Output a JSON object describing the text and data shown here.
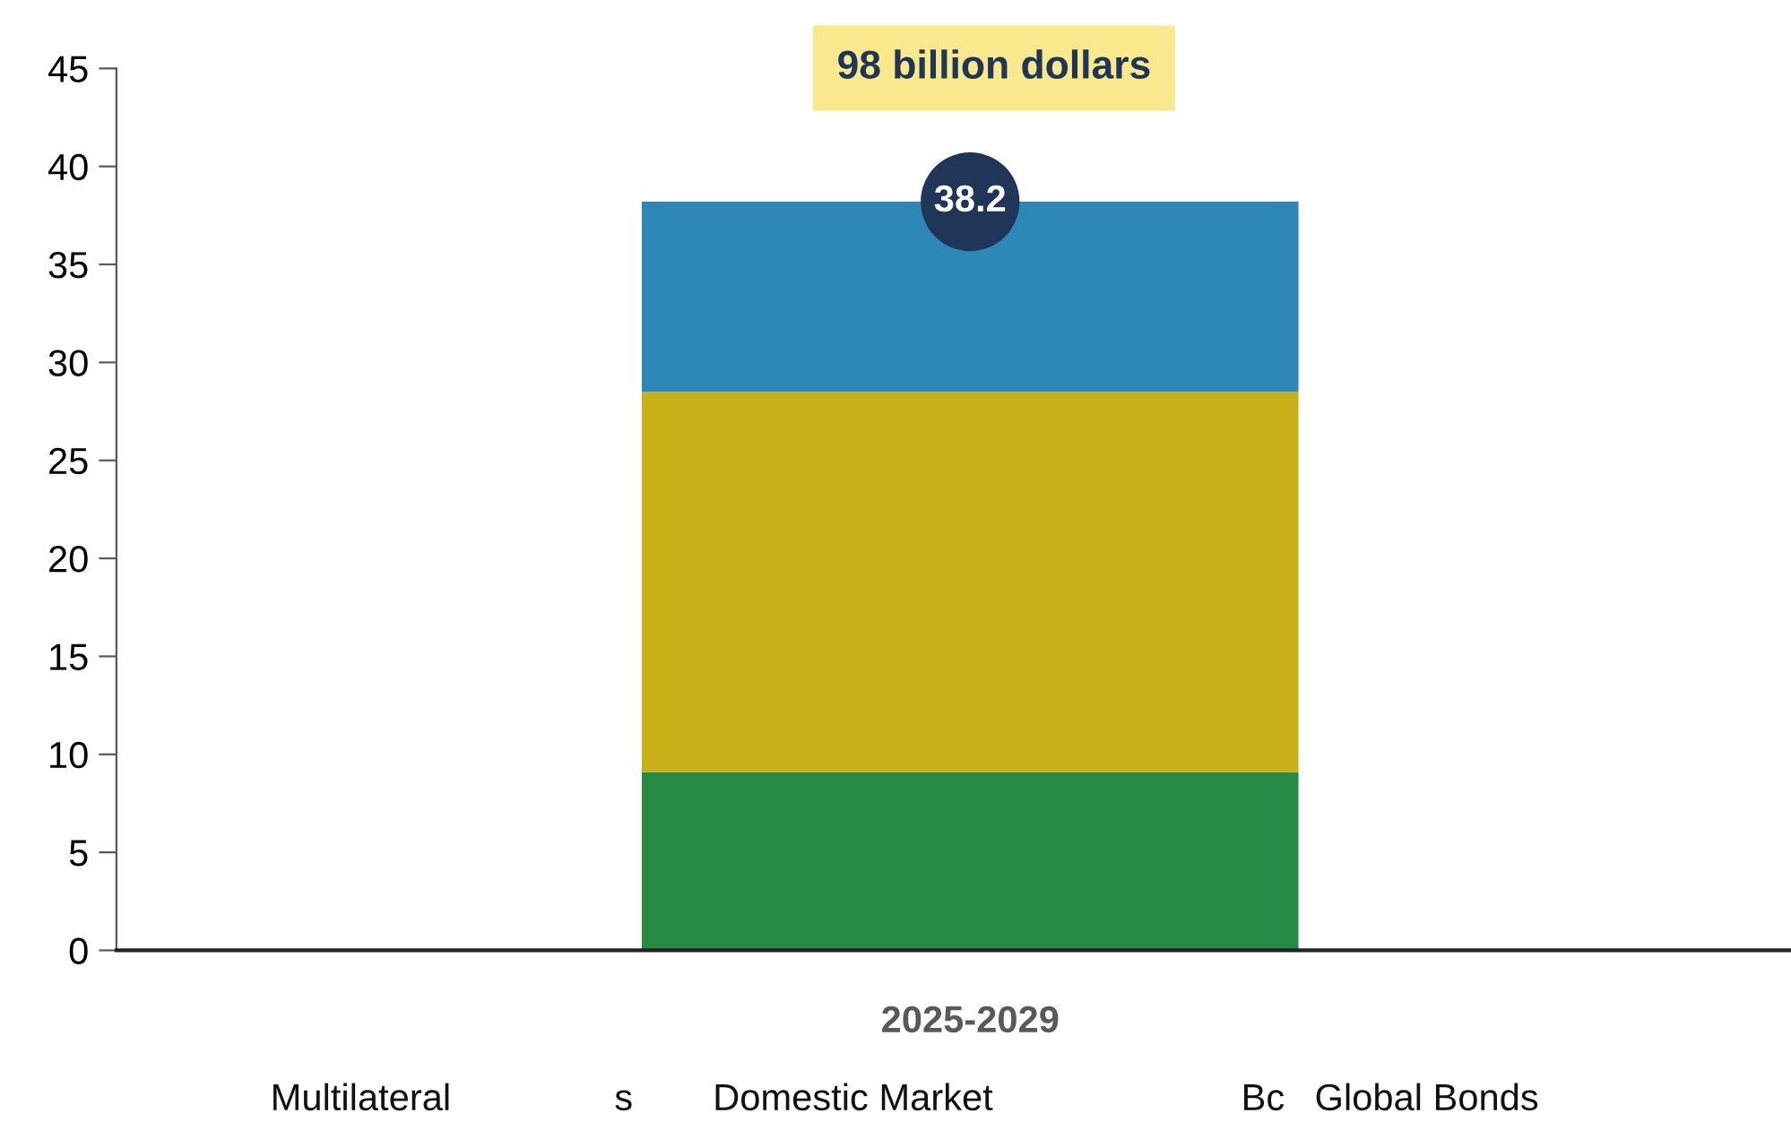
{
  "chart_data": {
    "type": "bar",
    "stacked": true,
    "categories": [
      "2025-2029"
    ],
    "series": [
      {
        "color": "#278a44",
        "values": [
          9.1
        ]
      },
      {
        "color": "#c8b01a",
        "values": [
          19.4
        ]
      },
      {
        "color": "#2d88b8",
        "values": [
          9.7
        ]
      }
    ],
    "totals": [
      "38.2"
    ],
    "ylim": [
      0,
      45
    ],
    "yticks": [
      0,
      5,
      10,
      15,
      20,
      25,
      30,
      35,
      40,
      45
    ],
    "grid": false,
    "legend": false,
    "annotations": [
      "98 billion dollars",
      "Multilateral",
      "s",
      "Domestic Market",
      "Bc",
      "Global Bonds"
    ]
  }
}
